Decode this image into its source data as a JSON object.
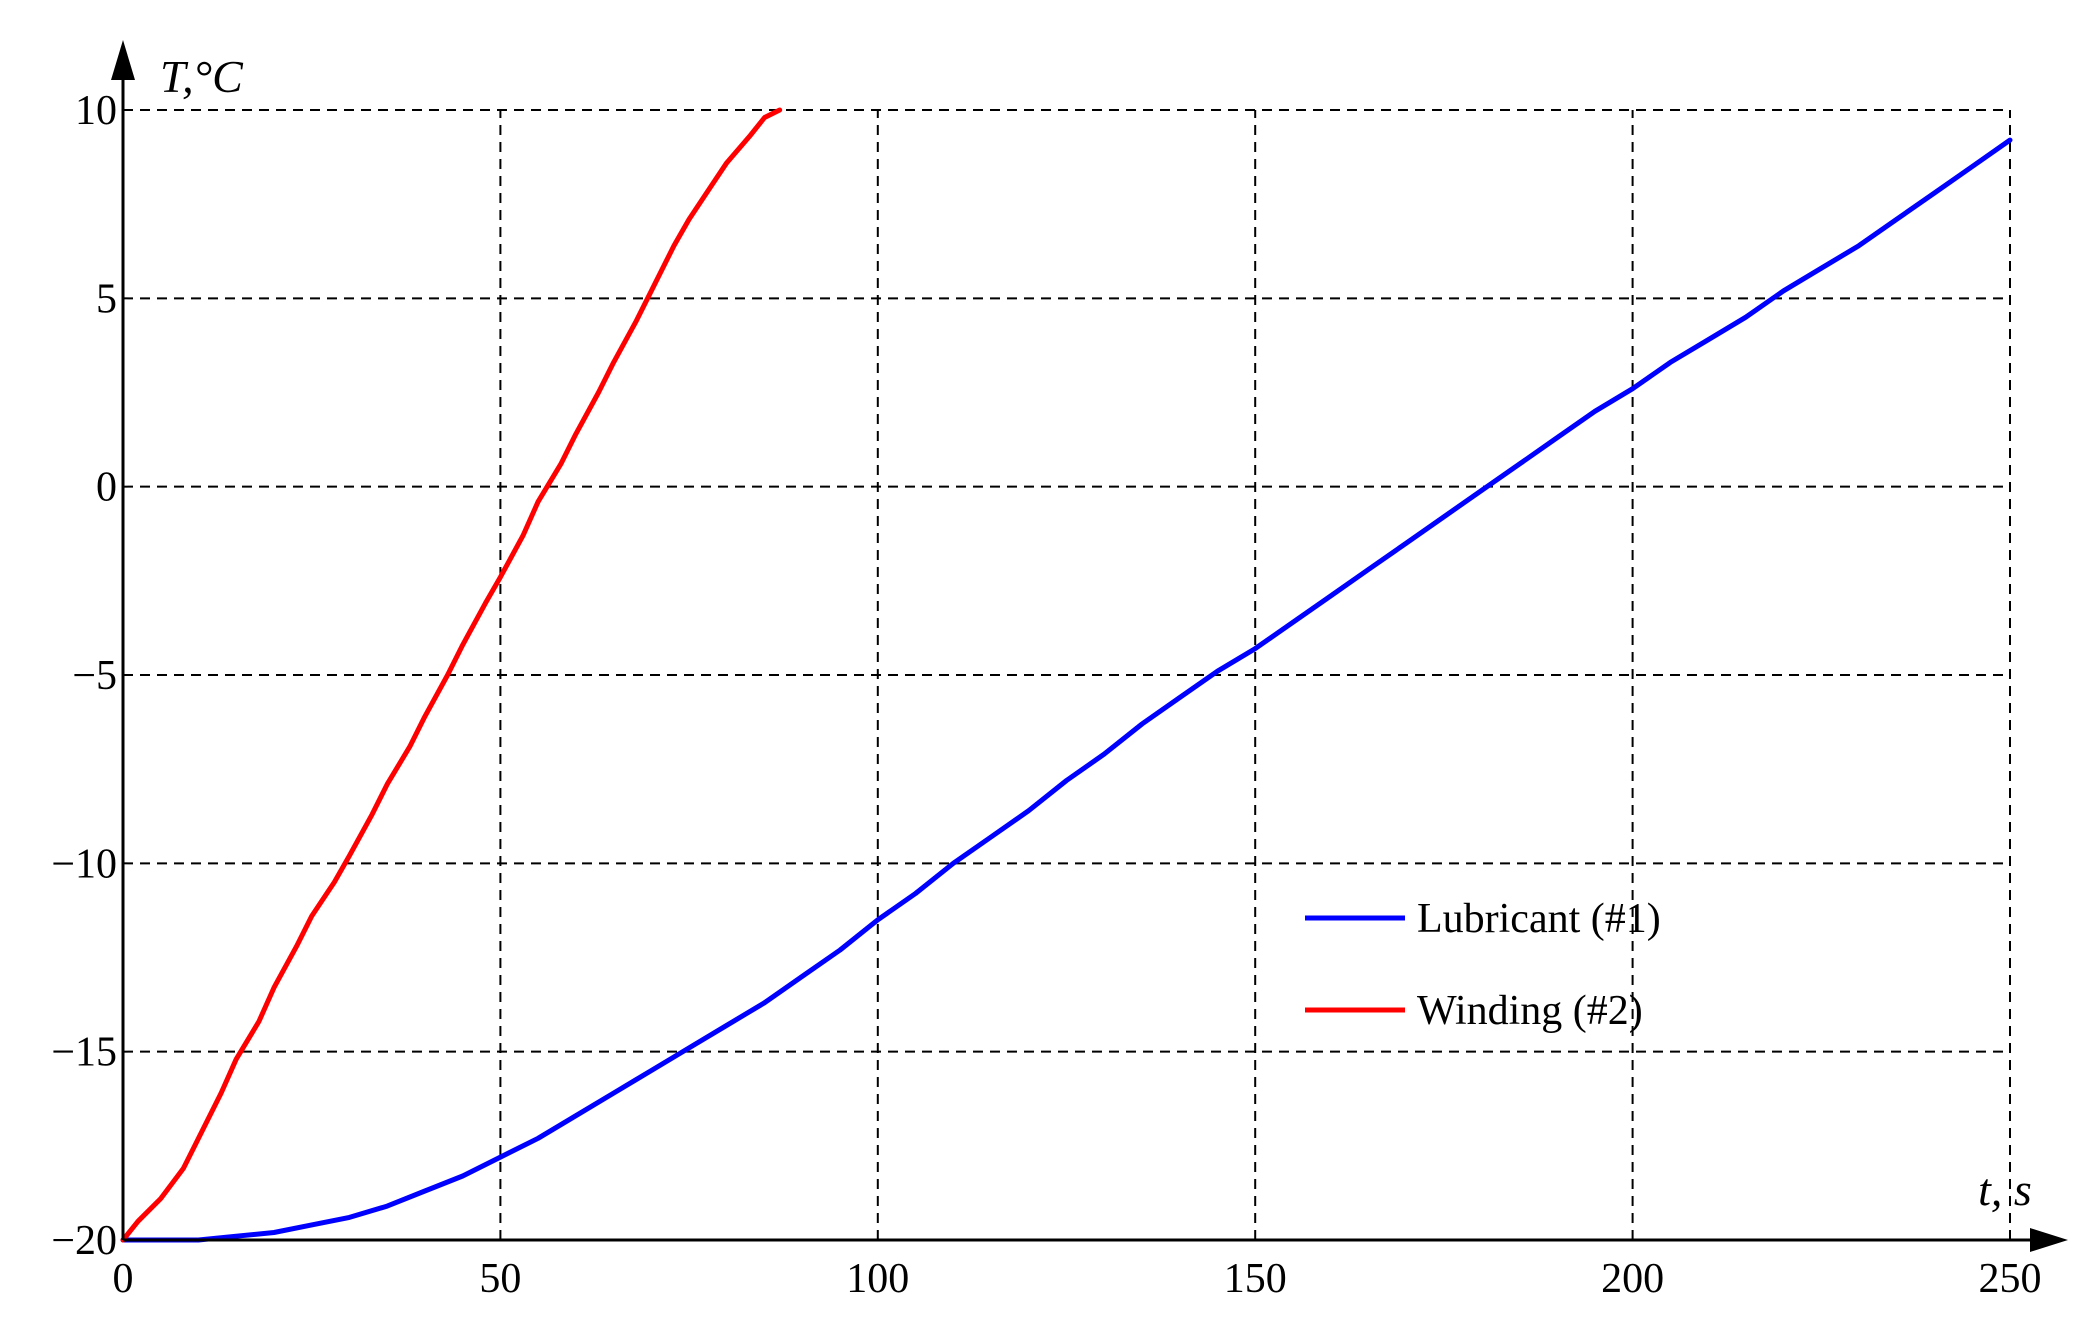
{
  "chart_data": {
    "type": "line",
    "xlabel": "t, s",
    "ylabel": "T,°C",
    "xlim": [
      0,
      250
    ],
    "ylim": [
      -20,
      10
    ],
    "x_ticks": [
      0,
      50,
      100,
      150,
      200,
      250
    ],
    "y_ticks": [
      10,
      5,
      0,
      -5,
      -10,
      -15,
      -20
    ],
    "x_tick_labels": [
      "0",
      "50",
      "100",
      "150",
      "200",
      "250"
    ],
    "y_tick_labels": [
      "10",
      "5",
      "0",
      "−5",
      "−10",
      "−15",
      "−20"
    ],
    "grid": true,
    "legend_position": "right",
    "series": [
      {
        "name": "Lubricant (#1)",
        "color": "#0000ff",
        "x": [
          0,
          5,
          10,
          15,
          20,
          25,
          30,
          35,
          40,
          45,
          50,
          55,
          60,
          65,
          70,
          75,
          80,
          85,
          90,
          95,
          100,
          105,
          110,
          115,
          120,
          125,
          130,
          135,
          140,
          145,
          150,
          155,
          160,
          165,
          170,
          175,
          180,
          185,
          190,
          195,
          200,
          205,
          210,
          215,
          220,
          225,
          230,
          235,
          240,
          245,
          250
        ],
        "y": [
          -20.0,
          -20.0,
          -20.0,
          -19.9,
          -19.8,
          -19.6,
          -19.4,
          -19.1,
          -18.7,
          -18.3,
          -17.8,
          -17.3,
          -16.7,
          -16.1,
          -15.5,
          -14.9,
          -14.3,
          -13.7,
          -13.0,
          -12.3,
          -11.5,
          -10.8,
          -10.0,
          -9.3,
          -8.6,
          -7.8,
          -7.1,
          -6.3,
          -5.6,
          -4.9,
          -4.3,
          -3.6,
          -2.9,
          -2.2,
          -1.5,
          -0.8,
          -0.1,
          0.6,
          1.3,
          2.0,
          2.6,
          3.3,
          3.9,
          4.5,
          5.2,
          5.8,
          6.4,
          7.1,
          7.8,
          8.5,
          9.2
        ]
      },
      {
        "name": "Winding (#2)",
        "color": "#ff0000",
        "x": [
          0,
          2,
          5,
          8,
          10,
          13,
          15,
          18,
          20,
          23,
          25,
          28,
          30,
          33,
          35,
          38,
          40,
          43,
          45,
          48,
          50,
          53,
          55,
          58,
          60,
          63,
          65,
          68,
          70,
          73,
          75,
          78,
          80,
          83,
          85,
          87
        ],
        "y": [
          -20.0,
          -19.5,
          -18.9,
          -18.1,
          -17.3,
          -16.1,
          -15.2,
          -14.2,
          -13.3,
          -12.2,
          -11.4,
          -10.5,
          -9.8,
          -8.7,
          -7.9,
          -6.9,
          -6.1,
          -5.0,
          -4.2,
          -3.1,
          -2.4,
          -1.3,
          -0.4,
          0.6,
          1.4,
          2.5,
          3.3,
          4.4,
          5.2,
          6.4,
          7.1,
          8.0,
          8.6,
          9.3,
          9.8,
          10.0
        ]
      }
    ]
  }
}
